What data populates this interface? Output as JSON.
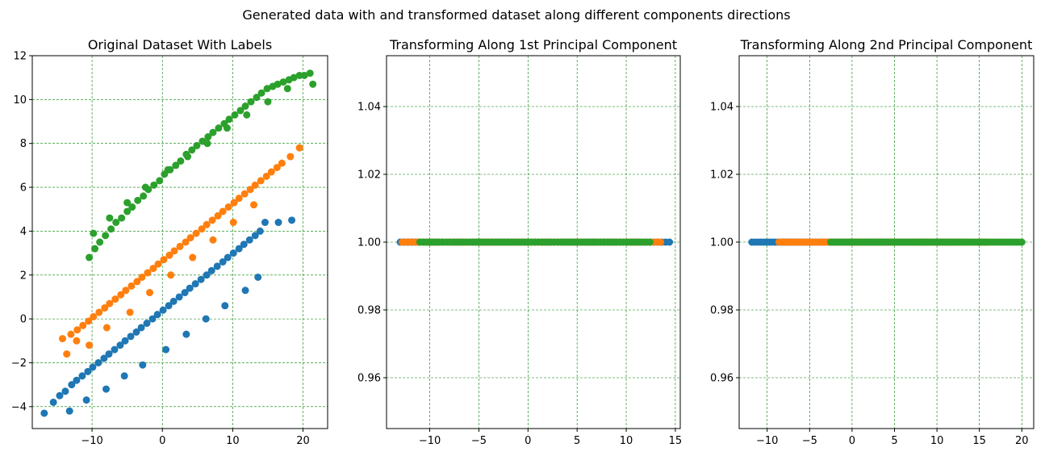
{
  "figure": {
    "suptitle": "Generated data with and transformed dataset along different components directions"
  },
  "colors": {
    "class0": "#1f77b4",
    "class1": "#ff7f0e",
    "class2": "#2ca02c",
    "grid": "#008000"
  },
  "chart_data": [
    {
      "type": "scatter",
      "title": "Original Dataset With Labels",
      "xlim": [
        -18.5,
        23.5
      ],
      "ylim": [
        -5.0,
        12.0
      ],
      "xticks": [
        -10,
        0,
        10,
        20
      ],
      "xtick_labels": [
        "−10",
        "0",
        "10",
        "20"
      ],
      "yticks": [
        -4,
        -2,
        0,
        2,
        4,
        6,
        8,
        10,
        12
      ],
      "ytick_labels": [
        "−4",
        "−2",
        "0",
        "2",
        "4",
        "6",
        "8",
        "10",
        "12"
      ],
      "grid": true,
      "series": [
        {
          "color": "#1f77b4",
          "x": [
            -16.8,
            -15.5,
            -14.6,
            -13.8,
            -12.9,
            -12.2,
            -11.4,
            -10.6,
            -9.9,
            -9.1,
            -8.3,
            -7.6,
            -6.8,
            -6.0,
            -5.3,
            -4.5,
            -3.7,
            -3.0,
            -2.2,
            -1.4,
            -0.7,
            0.1,
            0.9,
            1.6,
            2.4,
            3.2,
            3.9,
            4.7,
            5.5,
            6.3,
            7.0,
            7.8,
            8.6,
            9.3,
            10.1,
            10.9,
            11.6,
            12.4,
            13.2,
            13.9,
            14.6,
            16.5,
            18.4,
            -13.2,
            -10.8,
            -8.0,
            -5.4,
            -2.8,
            0.5,
            3.4,
            6.2,
            8.9,
            11.8,
            13.6
          ],
          "y": [
            -4.3,
            -3.8,
            -3.5,
            -3.3,
            -3.0,
            -2.8,
            -2.6,
            -2.4,
            -2.2,
            -2.0,
            -1.8,
            -1.6,
            -1.4,
            -1.2,
            -1.0,
            -0.8,
            -0.6,
            -0.4,
            -0.2,
            0.0,
            0.2,
            0.4,
            0.6,
            0.8,
            1.0,
            1.2,
            1.4,
            1.6,
            1.8,
            2.0,
            2.2,
            2.4,
            2.6,
            2.8,
            3.0,
            3.2,
            3.4,
            3.6,
            3.8,
            4.0,
            4.4,
            4.4,
            4.5,
            -4.2,
            -3.7,
            -3.2,
            -2.6,
            -2.1,
            -1.4,
            -0.7,
            0.0,
            0.6,
            1.3,
            1.9
          ]
        },
        {
          "color": "#ff7f0e",
          "x": [
            -14.2,
            -13.0,
            -12.1,
            -11.3,
            -10.5,
            -9.8,
            -9.0,
            -8.2,
            -7.5,
            -6.7,
            -5.9,
            -5.2,
            -4.4,
            -3.6,
            -2.9,
            -2.1,
            -1.3,
            -0.6,
            0.2,
            1.0,
            1.7,
            2.5,
            3.3,
            4.0,
            4.8,
            5.6,
            6.3,
            7.1,
            7.9,
            8.6,
            9.4,
            10.2,
            10.9,
            11.7,
            12.5,
            13.2,
            14.0,
            14.8,
            15.5,
            16.3,
            17.0,
            18.2,
            19.5,
            -13.6,
            -12.2,
            -10.4,
            -7.9,
            -4.6,
            -1.8,
            1.2,
            4.3,
            7.2,
            10.1,
            13.0
          ],
          "y": [
            -0.9,
            -0.7,
            -0.5,
            -0.3,
            -0.1,
            0.1,
            0.3,
            0.5,
            0.7,
            0.9,
            1.1,
            1.3,
            1.5,
            1.7,
            1.9,
            2.1,
            2.3,
            2.5,
            2.7,
            2.9,
            3.1,
            3.3,
            3.5,
            3.7,
            3.9,
            4.1,
            4.3,
            4.5,
            4.7,
            4.9,
            5.1,
            5.3,
            5.5,
            5.7,
            5.9,
            6.1,
            6.3,
            6.5,
            6.7,
            6.9,
            7.1,
            7.4,
            7.8,
            -1.6,
            -1.0,
            -1.2,
            -0.4,
            0.3,
            1.2,
            2.0,
            2.8,
            3.6,
            4.4,
            5.2
          ]
        },
        {
          "color": "#2ca02c",
          "x": [
            -10.4,
            -9.6,
            -8.9,
            -8.1,
            -7.3,
            -6.6,
            -5.8,
            -5.0,
            -4.3,
            -3.5,
            -2.7,
            -2.0,
            -1.2,
            -0.4,
            0.3,
            1.1,
            1.9,
            2.6,
            3.4,
            4.2,
            4.9,
            5.7,
            6.5,
            7.2,
            8.0,
            8.8,
            9.5,
            10.3,
            11.1,
            11.8,
            12.6,
            13.4,
            14.1,
            14.9,
            15.7,
            16.4,
            17.2,
            18.0,
            18.7,
            19.5,
            20.2,
            21.0,
            21.4,
            -9.8,
            -7.5,
            -5.0,
            -2.4,
            0.8,
            3.6,
            6.4,
            9.2,
            12.0,
            15.0,
            17.8
          ],
          "y": [
            2.8,
            3.2,
            3.5,
            3.8,
            4.1,
            4.4,
            4.6,
            4.9,
            5.1,
            5.4,
            5.6,
            5.9,
            6.1,
            6.3,
            6.6,
            6.8,
            7.0,
            7.2,
            7.5,
            7.7,
            7.9,
            8.1,
            8.3,
            8.5,
            8.7,
            8.9,
            9.1,
            9.3,
            9.5,
            9.7,
            9.9,
            10.1,
            10.3,
            10.5,
            10.6,
            10.7,
            10.8,
            10.9,
            11.0,
            11.1,
            11.1,
            11.2,
            10.7,
            3.9,
            4.6,
            5.3,
            6.0,
            6.8,
            7.4,
            8.0,
            8.7,
            9.3,
            9.9,
            10.5
          ]
        }
      ]
    },
    {
      "type": "scatter",
      "title": "Transforming Along 1st Principal Component",
      "xlim": [
        -14.4,
        15.5
      ],
      "ylim": [
        0.945,
        1.055
      ],
      "xticks": [
        -10,
        -5,
        0,
        5,
        10,
        15
      ],
      "xtick_labels": [
        "−10",
        "−5",
        "0",
        "5",
        "10",
        "15"
      ],
      "yticks": [
        0.96,
        0.98,
        1.0,
        1.02,
        1.04
      ],
      "ytick_labels": [
        "0.96",
        "0.98",
        "1.00",
        "1.02",
        "1.04"
      ],
      "grid": true,
      "series": [
        {
          "color": "#1f77b4",
          "x_range": [
            -13.0,
            14.4
          ],
          "y": 1.0
        },
        {
          "color": "#ff7f0e",
          "x_range": [
            -12.8,
            13.5
          ],
          "y": 1.0
        },
        {
          "color": "#2ca02c",
          "x_range": [
            -11.0,
            12.4
          ],
          "y": 1.0
        }
      ]
    },
    {
      "type": "scatter",
      "title": "Transforming Along 2nd Principal Component",
      "xlim": [
        -13.3,
        21.4
      ],
      "ylim": [
        0.945,
        1.055
      ],
      "xticks": [
        -10,
        -5,
        0,
        5,
        10,
        15,
        20
      ],
      "xtick_labels": [
        "−10",
        "−5",
        "0",
        "5",
        "10",
        "15",
        "20"
      ],
      "yticks": [
        0.96,
        0.98,
        1.0,
        1.02,
        1.04
      ],
      "ytick_labels": [
        "0.96",
        "0.98",
        "1.00",
        "1.02",
        "1.04"
      ],
      "grid": true,
      "series": [
        {
          "color": "#1f77b4",
          "x_range": [
            -11.8,
            12.0
          ],
          "y": 1.0
        },
        {
          "color": "#ff7f0e",
          "x_range": [
            -8.6,
            16.0
          ],
          "y": 1.0
        },
        {
          "color": "#2ca02c",
          "x_range": [
            -2.5,
            20.0
          ],
          "y": 1.0
        }
      ]
    }
  ]
}
